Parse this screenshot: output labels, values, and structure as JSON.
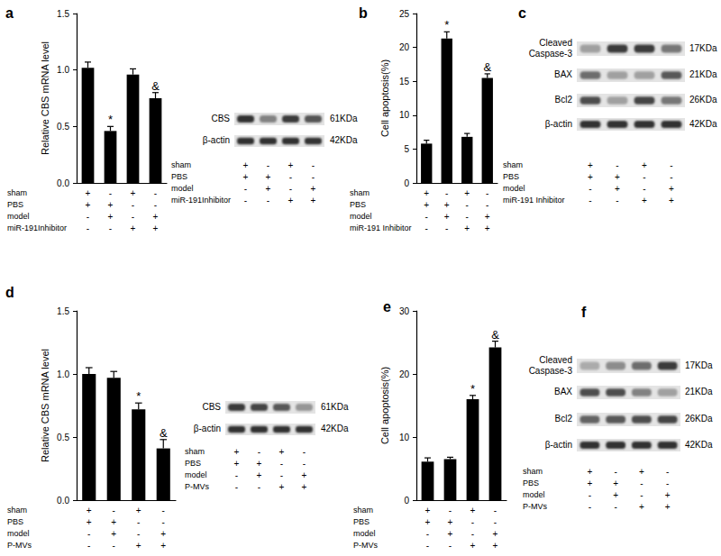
{
  "chart_data": [
    {
      "panel": "a",
      "type": "bar",
      "y_label": "Relative CBS mRNA level",
      "values": [
        1.02,
        0.46,
        0.96,
        0.75
      ],
      "errors": [
        0.05,
        0.04,
        0.05,
        0.05
      ],
      "annotations": [
        {
          "index": 1,
          "text": "*"
        },
        {
          "index": 3,
          "text": "&"
        }
      ],
      "color": "#000000",
      "ylim": [
        0,
        1.5
      ],
      "yticks": [
        {
          "value": 0,
          "label": "0.0"
        },
        0.5,
        {
          "value": 1,
          "label": "1.0"
        },
        1.5
      ],
      "grid": false,
      "tick_labels": "y",
      "conditions": [
        {
          "name": "sham",
          "marks": [
            "+",
            "-",
            "+",
            "-"
          ]
        },
        {
          "name": "PBS",
          "marks": [
            "+",
            "+",
            "-",
            "-"
          ]
        },
        {
          "name": "model",
          "marks": [
            "-",
            "+",
            "-",
            "+"
          ]
        },
        {
          "name": "miR-191Inhibitor",
          "marks": [
            "-",
            "-",
            "+",
            "+"
          ]
        }
      ]
    },
    {
      "panel": "b",
      "type": "bar",
      "y_label": "Cell apoptosis(%)",
      "values": [
        5.8,
        21.3,
        6.8,
        15.5
      ],
      "errors": [
        0.5,
        1.0,
        0.5,
        0.6
      ],
      "annotations": [
        {
          "index": 1,
          "text": "*"
        },
        {
          "index": 3,
          "text": "&"
        }
      ],
      "color": "#000000",
      "ylim": [
        0,
        25
      ],
      "yticks": [
        0,
        5,
        10,
        15,
        20,
        25
      ],
      "grid": false,
      "tick_labels": "y",
      "conditions": [
        {
          "name": "sham",
          "marks": [
            "+",
            "-",
            "+",
            "-"
          ]
        },
        {
          "name": "PBS",
          "marks": [
            "+",
            "+",
            "-",
            "-"
          ]
        },
        {
          "name": "model",
          "marks": [
            "-",
            "+",
            "-",
            "+"
          ]
        },
        {
          "name": "miR-191 Inhibitor",
          "marks": [
            "-",
            "-",
            "+",
            "+"
          ]
        }
      ]
    },
    {
      "panel": "d",
      "type": "bar",
      "y_label": "Relative CBS mRNA level",
      "values": [
        1.0,
        0.97,
        0.72,
        0.41
      ],
      "errors": [
        0.05,
        0.05,
        0.05,
        0.07
      ],
      "annotations": [
        {
          "index": 2,
          "text": "*"
        },
        {
          "index": 3,
          "text": "&"
        }
      ],
      "color": "#000000",
      "ylim": [
        0,
        1.5
      ],
      "yticks": [
        {
          "value": 0,
          "label": "0.0"
        },
        0.5,
        {
          "value": 1,
          "label": "1.0"
        },
        1.5
      ],
      "grid": false,
      "tick_labels": "y",
      "conditions": [
        {
          "name": "sham",
          "marks": [
            "+",
            "-",
            "+",
            "-"
          ]
        },
        {
          "name": "PBS",
          "marks": [
            "+",
            "+",
            "-",
            "-"
          ]
        },
        {
          "name": "model",
          "marks": [
            "-",
            "+",
            "-",
            "+"
          ]
        },
        {
          "name": "P-MVs",
          "marks": [
            "-",
            "-",
            "+",
            "+"
          ]
        }
      ]
    },
    {
      "panel": "e",
      "type": "bar",
      "y_label": "Cell apoptosis(%)",
      "values": [
        6.1,
        6.5,
        16.0,
        24.2
      ],
      "errors": [
        0.6,
        0.3,
        0.6,
        1.0
      ],
      "annotations": [
        {
          "index": 2,
          "text": "*"
        },
        {
          "index": 3,
          "text": "&"
        }
      ],
      "color": "#000000",
      "ylim": [
        0,
        30
      ],
      "yticks": [
        0,
        10,
        20,
        30
      ],
      "grid": false,
      "tick_labels": "y",
      "conditions": [
        {
          "name": "sham",
          "marks": [
            "+",
            "-",
            "+",
            "-"
          ]
        },
        {
          "name": "PBS",
          "marks": [
            "+",
            "+",
            "-",
            "-"
          ]
        },
        {
          "name": "model",
          "marks": [
            "-",
            "+",
            "-",
            "+"
          ]
        },
        {
          "name": "P-MVs",
          "marks": [
            "-",
            "-",
            "+",
            "+"
          ]
        }
      ]
    }
  ],
  "blots": [
    {
      "panel": "a",
      "type": "blot",
      "rows": [
        {
          "name": "CBS",
          "size": "61KDa",
          "intensity": [
            0.9,
            0.5,
            0.85,
            0.72
          ]
        },
        {
          "name": "β-actin",
          "size": "42KDa",
          "intensity": [
            0.9,
            0.9,
            0.9,
            0.88
          ]
        }
      ],
      "conditions": [
        {
          "name": "sham",
          "marks": [
            "+",
            "-",
            "+",
            "-"
          ]
        },
        {
          "name": "PBS",
          "marks": [
            "+",
            "+",
            "-",
            "-"
          ]
        },
        {
          "name": "model",
          "marks": [
            "-",
            "+",
            "-",
            "+"
          ]
        },
        {
          "name": "miR-191Inhibitor",
          "marks": [
            "-",
            "-",
            "+",
            "+"
          ]
        }
      ]
    },
    {
      "panel": "c",
      "type": "blot",
      "rows": [
        {
          "name": "Cleaved Caspase-3",
          "size": "17KDa",
          "intensity": [
            0.35,
            0.85,
            0.85,
            0.55
          ]
        },
        {
          "name": "BAX",
          "size": "21KDa",
          "intensity": [
            0.6,
            0.35,
            0.35,
            0.7
          ]
        },
        {
          "name": "Bcl2",
          "size": "26KDa",
          "intensity": [
            0.75,
            0.35,
            0.8,
            0.55
          ]
        },
        {
          "name": "β-actin",
          "size": "42KDa",
          "intensity": [
            0.9,
            0.9,
            0.9,
            0.9
          ]
        }
      ],
      "conditions": [
        {
          "name": "sham",
          "marks": [
            "+",
            "-",
            "+",
            "-"
          ]
        },
        {
          "name": "PBS",
          "marks": [
            "+",
            "+",
            "-",
            "-"
          ]
        },
        {
          "name": "model",
          "marks": [
            "-",
            "+",
            "-",
            "+"
          ]
        },
        {
          "name": "miR-191 Inhibitor",
          "marks": [
            "-",
            "-",
            "+",
            "+"
          ]
        }
      ]
    },
    {
      "panel": "d",
      "type": "blot",
      "rows": [
        {
          "name": "CBS",
          "size": "61KDa",
          "intensity": [
            0.85,
            0.8,
            0.7,
            0.4
          ]
        },
        {
          "name": "β-actin",
          "size": "42KDa",
          "intensity": [
            0.9,
            0.9,
            0.9,
            0.9
          ]
        }
      ],
      "conditions": [
        {
          "name": "sham",
          "marks": [
            "+",
            "-",
            "+",
            "-"
          ]
        },
        {
          "name": "PBS",
          "marks": [
            "+",
            "+",
            "-",
            "-"
          ]
        },
        {
          "name": "model",
          "marks": [
            "-",
            "+",
            "-",
            "+"
          ]
        },
        {
          "name": "P-MVs",
          "marks": [
            "-",
            "-",
            "+",
            "+"
          ]
        }
      ]
    },
    {
      "panel": "f",
      "type": "blot",
      "rows": [
        {
          "name": "Cleaved Caspase-3",
          "size": "17KDa",
          "intensity": [
            0.3,
            0.45,
            0.6,
            0.85
          ]
        },
        {
          "name": "BAX",
          "size": "21KDa",
          "intensity": [
            0.75,
            0.75,
            0.5,
            0.35
          ]
        },
        {
          "name": "Bcl2",
          "size": "26KDa",
          "intensity": [
            0.65,
            0.7,
            0.75,
            0.8
          ]
        },
        {
          "name": "β-actin",
          "size": "42KDa",
          "intensity": [
            0.9,
            0.9,
            0.9,
            0.9
          ]
        }
      ],
      "conditions": [
        {
          "name": "sham",
          "marks": [
            "+",
            "-",
            "+",
            "-"
          ]
        },
        {
          "name": "PBS",
          "marks": [
            "+",
            "+",
            "-",
            "-"
          ]
        },
        {
          "name": "model",
          "marks": [
            "-",
            "+",
            "-",
            "+"
          ]
        },
        {
          "name": "P-MVs",
          "marks": [
            "-",
            "-",
            "+",
            "+"
          ]
        }
      ]
    }
  ]
}
